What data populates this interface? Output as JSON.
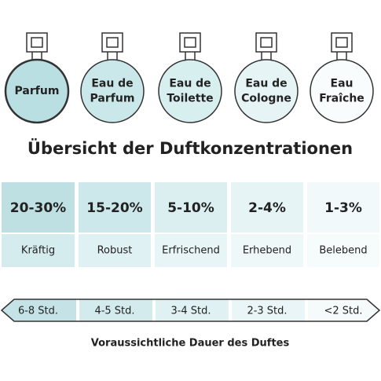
{
  "bottles": [
    {
      "lines": [
        "Parfum"
      ]
    },
    {
      "lines": [
        "Eau de",
        "Parfum"
      ]
    },
    {
      "lines": [
        "Eau de",
        "Toilette"
      ]
    },
    {
      "lines": [
        "Eau de",
        "Cologne"
      ]
    },
    {
      "lines": [
        "Eau",
        "Fraîche"
      ]
    }
  ],
  "title": "Übersicht der Duftkonzentrationen",
  "table": {
    "rows": [
      [
        "20-30%",
        "15-20%",
        "5-10%",
        "2-4%",
        "1-3%"
      ],
      [
        "Kräftig",
        "Robust",
        "Erfrischend",
        "Erhebend",
        "Belebend"
      ]
    ]
  },
  "durations": [
    "6-8 Std.",
    "4-5 Std.",
    "3-4 Std.",
    "2-3 Std.",
    "<2 Std."
  ],
  "caption": "Voraussichtliche Dauer des Duftes"
}
